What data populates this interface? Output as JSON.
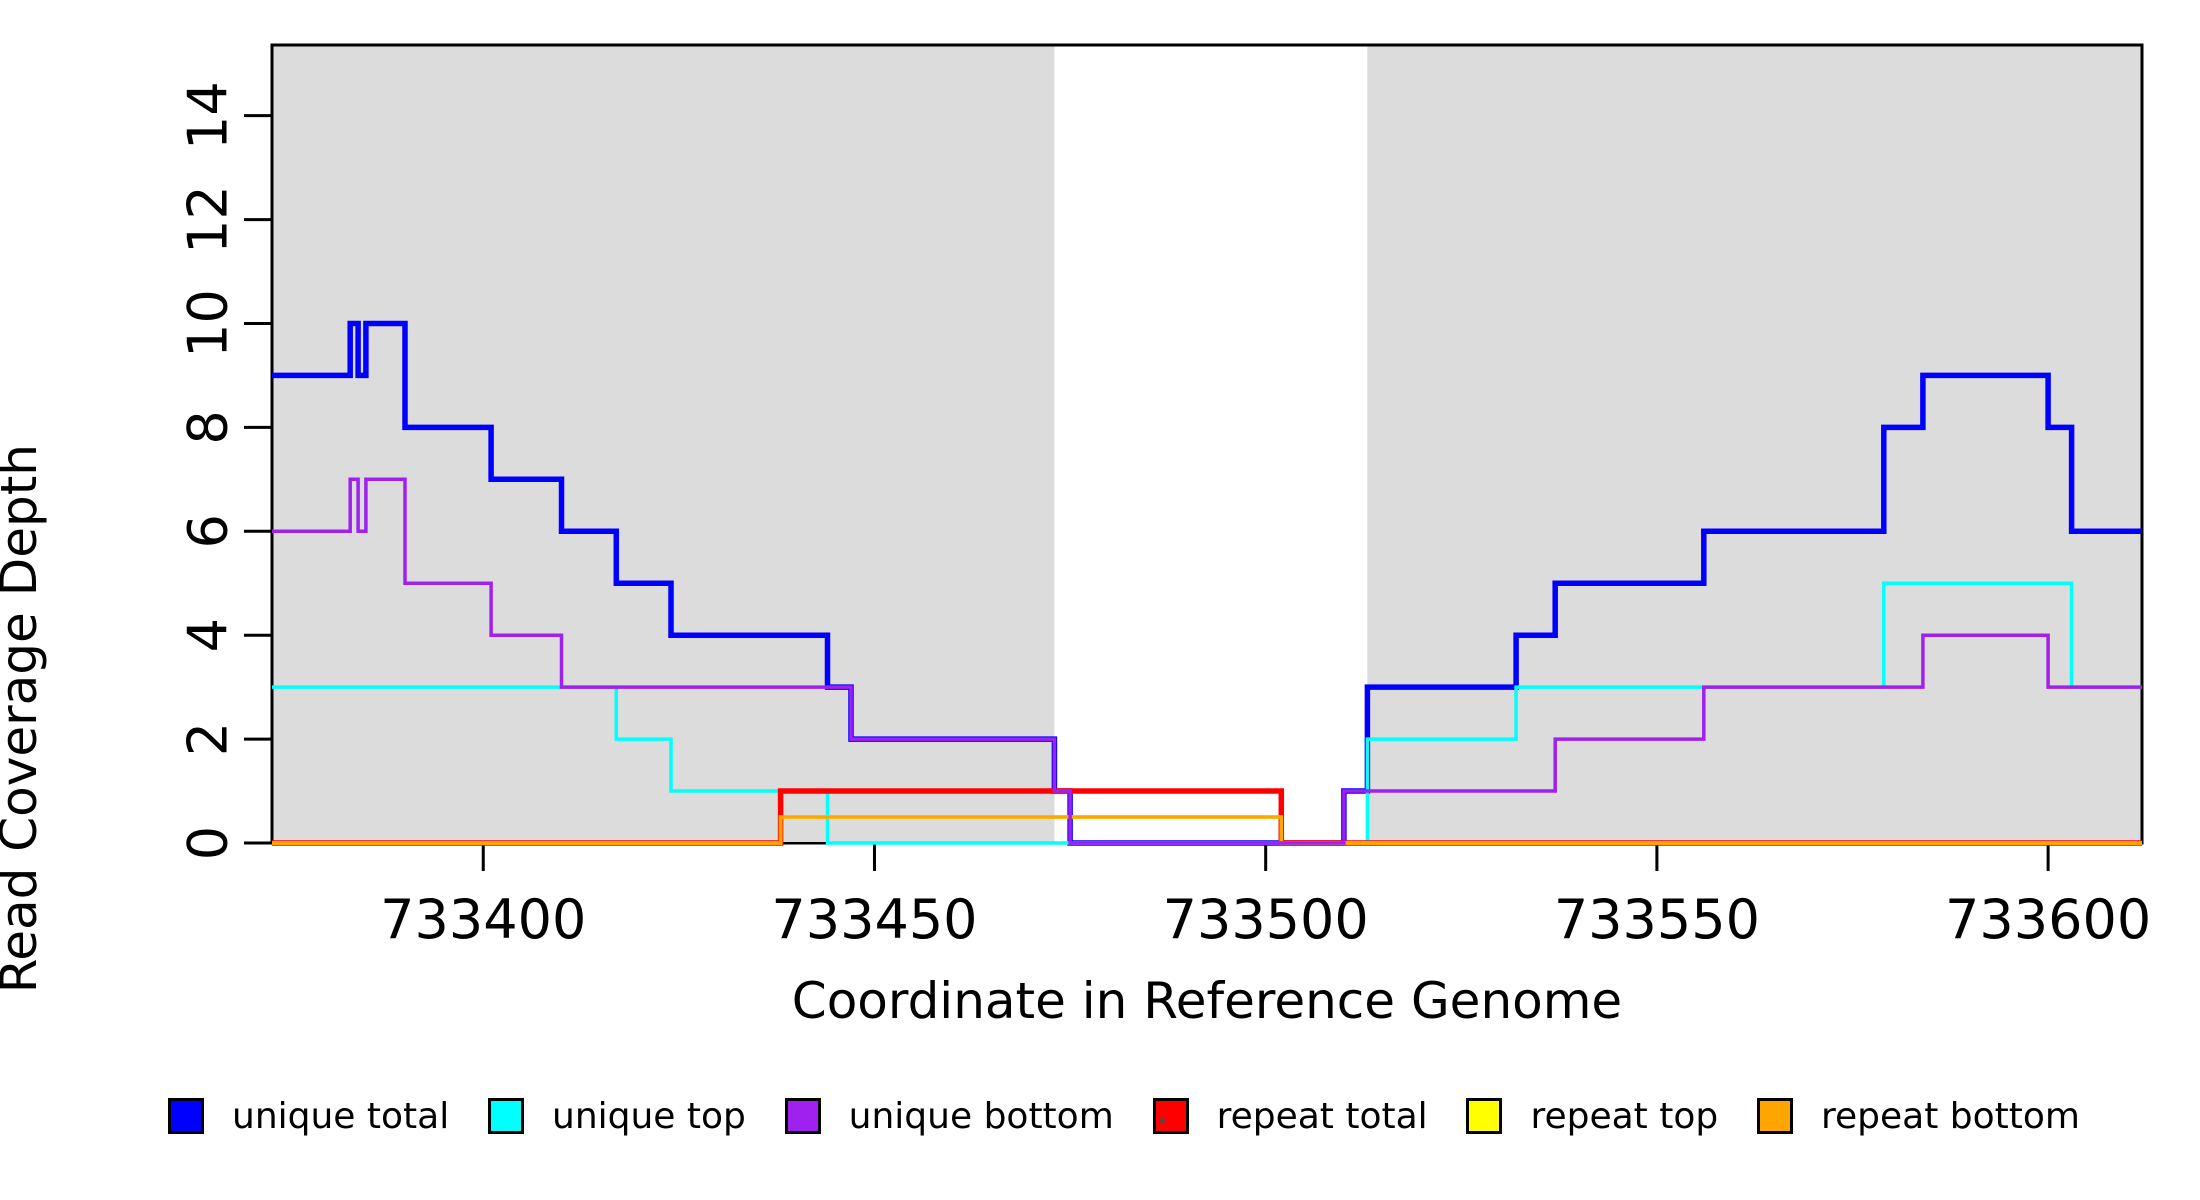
{
  "chart_data": {
    "type": "line",
    "subtype": "step-coverage-plot",
    "title": "",
    "xlabel": "Coordinate in Reference Genome",
    "ylabel": "Read Coverage Depth",
    "xlim": [
      733373,
      733612
    ],
    "ylim": [
      0,
      15.36
    ],
    "x_ticks": [
      733400,
      733450,
      733500,
      733550,
      733600
    ],
    "y_ticks": [
      0,
      2,
      4,
      6,
      8,
      10,
      12,
      14
    ],
    "grid": false,
    "legend_position": "bottom",
    "background_color": "#ffffff",
    "shaded_region_color": "#DCDCDC",
    "shaded_regions": [
      {
        "from": 733373,
        "to": 733473
      },
      {
        "from": 733513,
        "to": 733612
      }
    ],
    "annotation_box": {
      "x_from": 733438,
      "x_to": 733444,
      "y_from": 0,
      "y_to": 1,
      "fill": "#DCDCDC",
      "border": "#000000"
    },
    "series": [
      {
        "name": "unique total",
        "color": "#0000FF",
        "width": 5.5,
        "z": 1,
        "steps": [
          [
            733373,
            733383,
            9
          ],
          [
            733383,
            733384,
            10
          ],
          [
            733384,
            733385,
            9
          ],
          [
            733385,
            733390,
            10
          ],
          [
            733390,
            733401,
            8
          ],
          [
            733401,
            733410,
            7
          ],
          [
            733410,
            733417,
            6
          ],
          [
            733417,
            733424,
            5
          ],
          [
            733424,
            733444,
            4
          ],
          [
            733444,
            733447,
            3
          ],
          [
            733447,
            733473,
            2
          ],
          [
            733473,
            733475,
            1
          ],
          [
            733475,
            733510,
            0
          ],
          [
            733510,
            733513,
            1
          ],
          [
            733513,
            733532,
            3
          ],
          [
            733532,
            733537,
            4
          ],
          [
            733537,
            733556,
            5
          ],
          [
            733556,
            733579,
            6
          ],
          [
            733579,
            733584,
            8
          ],
          [
            733584,
            733600,
            9
          ],
          [
            733600,
            733603,
            8
          ],
          [
            733603,
            733612,
            6
          ]
        ]
      },
      {
        "name": "unique top",
        "color": "#00FFFF",
        "width": 3.5,
        "z": 2,
        "steps": [
          [
            733373,
            733417,
            3
          ],
          [
            733417,
            733424,
            2
          ],
          [
            733424,
            733444,
            1
          ],
          [
            733444,
            733513,
            0
          ],
          [
            733513,
            733532,
            2
          ],
          [
            733532,
            733579,
            3
          ],
          [
            733579,
            733603,
            5
          ],
          [
            733603,
            733612,
            3
          ]
        ]
      },
      {
        "name": "unique bottom",
        "color": "#A020F0",
        "width": 3.5,
        "z": 6,
        "steps": [
          [
            733373,
            733383,
            6
          ],
          [
            733383,
            733384,
            7
          ],
          [
            733384,
            733385,
            6
          ],
          [
            733385,
            733390,
            7
          ],
          [
            733390,
            733401,
            5
          ],
          [
            733401,
            733410,
            4
          ],
          [
            733410,
            733447,
            3
          ],
          [
            733447,
            733473,
            2
          ],
          [
            733473,
            733475,
            1
          ],
          [
            733475,
            733510,
            0
          ],
          [
            733510,
            733537,
            1
          ],
          [
            733537,
            733556,
            2
          ],
          [
            733556,
            733584,
            3
          ],
          [
            733584,
            733600,
            4
          ],
          [
            733600,
            733612,
            3
          ]
        ]
      },
      {
        "name": "repeat total",
        "color": "#FF0000",
        "width": 5.5,
        "z": 3,
        "steps": [
          [
            733373,
            733438,
            0
          ],
          [
            733438,
            733502,
            1
          ],
          [
            733502,
            733612,
            0
          ]
        ]
      },
      {
        "name": "repeat top",
        "color": "#FFFF00",
        "width": 3.5,
        "z": 4,
        "steps": [
          [
            733373,
            733438,
            0
          ],
          [
            733438,
            733502,
            0.5
          ],
          [
            733502,
            733612,
            0
          ]
        ]
      },
      {
        "name": "repeat bottom",
        "color": "#FFA500",
        "width": 3.5,
        "z": 5,
        "steps": [
          [
            733373,
            733438,
            0
          ],
          [
            733438,
            733502,
            0.5
          ],
          [
            733502,
            733612,
            0
          ]
        ]
      }
    ]
  },
  "axes": {
    "x_title": "Coordinate in Reference Genome",
    "y_title": "Read Coverage Depth",
    "x_tick_labels": [
      "733400",
      "733450",
      "733500",
      "733550",
      "733600"
    ],
    "y_tick_labels": [
      "0",
      "2",
      "4",
      "6",
      "8",
      "10",
      "12",
      "14"
    ]
  },
  "legend": {
    "items": [
      {
        "label": "unique total",
        "color": "#0000FF"
      },
      {
        "label": "unique top",
        "color": "#00FFFF"
      },
      {
        "label": "unique bottom",
        "color": "#A020F0"
      },
      {
        "label": "repeat total",
        "color": "#FF0000"
      },
      {
        "label": "repeat top",
        "color": "#FFFF00"
      },
      {
        "label": "repeat bottom",
        "color": "#FFA500"
      }
    ]
  }
}
